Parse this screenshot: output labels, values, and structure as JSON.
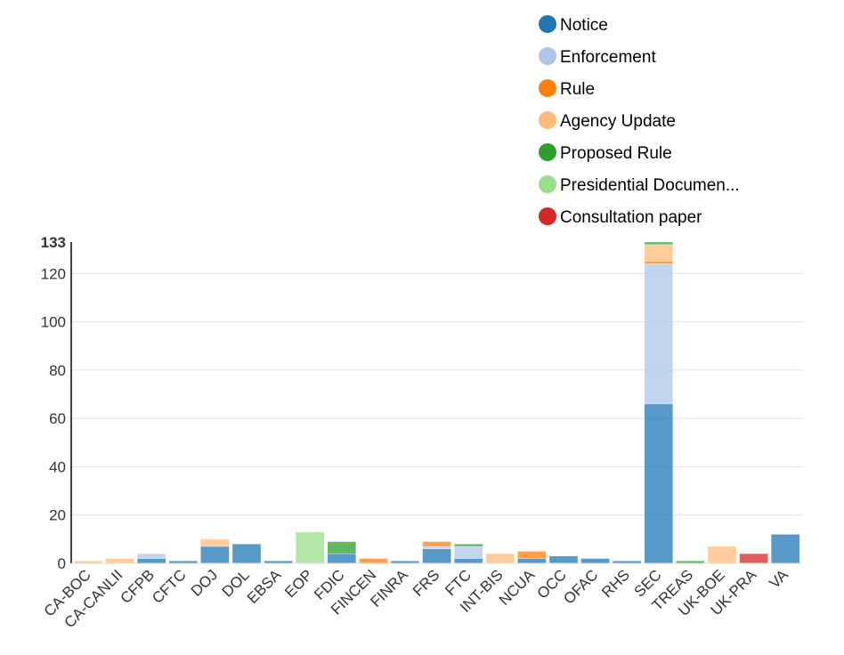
{
  "chart_data": {
    "type": "bar",
    "stacked": true,
    "title": "",
    "xlabel": "",
    "ylabel": "",
    "ylim": [
      0,
      133
    ],
    "yticks": [
      0,
      20,
      40,
      60,
      80,
      100,
      120
    ],
    "ymax_label": "133",
    "grid": true,
    "legend_position": "top-right",
    "categories": [
      "CA-BOC",
      "CA-CANLII",
      "CFPB",
      "CFTC",
      "DOJ",
      "DOL",
      "EBSA",
      "EOP",
      "FDIC",
      "FINCEN",
      "FINRA",
      "FRS",
      "FTC",
      "INT-BIS",
      "NCUA",
      "OCC",
      "OFAC",
      "RHS",
      "SEC",
      "TREAS",
      "UK-BOE",
      "UK-PRA",
      "VA"
    ],
    "series": [
      {
        "name": "Notice",
        "color": "#1f77b4",
        "values": [
          0,
          0,
          2,
          1,
          7,
          8,
          1,
          0,
          4,
          0,
          1,
          6,
          2,
          0,
          2,
          3,
          2,
          1,
          66,
          0,
          0,
          0,
          12
        ]
      },
      {
        "name": "Enforcement",
        "color": "#aec7e8",
        "values": [
          0,
          0,
          2,
          0,
          0,
          0,
          0,
          0,
          0,
          0,
          0,
          1,
          5,
          0,
          0,
          0,
          0,
          0,
          58,
          0,
          0,
          0,
          0
        ]
      },
      {
        "name": "Rule",
        "color": "#ff7f0e",
        "values": [
          0,
          0,
          0,
          0,
          0,
          0,
          0,
          0,
          0,
          2,
          0,
          2,
          0,
          0,
          3,
          0,
          0,
          0,
          1,
          0,
          0,
          0,
          0
        ]
      },
      {
        "name": "Agency Update",
        "color": "#ffbb78",
        "values": [
          1,
          2,
          0,
          0,
          3,
          0,
          0,
          0,
          0,
          0,
          0,
          0,
          0,
          4,
          0,
          0,
          0,
          0,
          7,
          0,
          7,
          0,
          0
        ]
      },
      {
        "name": "Proposed Rule",
        "color": "#2ca02c",
        "values": [
          0,
          0,
          0,
          0,
          0,
          0,
          0,
          0,
          5,
          0,
          0,
          0,
          1,
          0,
          0,
          0,
          0,
          0,
          1,
          1,
          0,
          0,
          0
        ]
      },
      {
        "name": "Presidential Documen...",
        "color": "#98df8a",
        "values": [
          0,
          0,
          0,
          0,
          0,
          0,
          0,
          13,
          0,
          0,
          0,
          0,
          0,
          0,
          0,
          0,
          0,
          0,
          0,
          0,
          0,
          0,
          0
        ]
      },
      {
        "name": "Consultation paper",
        "color": "#d62728",
        "values": [
          0,
          0,
          0,
          0,
          0,
          0,
          0,
          0,
          0,
          0,
          0,
          0,
          0,
          0,
          0,
          0,
          0,
          0,
          0,
          0,
          0,
          4,
          0
        ]
      }
    ]
  }
}
